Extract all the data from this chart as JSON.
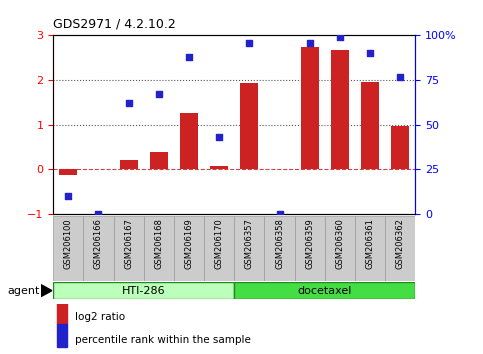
{
  "title": "GDS2971 / 4.2.10.2",
  "samples": [
    "GSM206100",
    "GSM206166",
    "GSM206167",
    "GSM206168",
    "GSM206169",
    "GSM206170",
    "GSM206357",
    "GSM206358",
    "GSM206359",
    "GSM206360",
    "GSM206361",
    "GSM206362"
  ],
  "log2_ratio": [
    -0.13,
    0.0,
    0.22,
    0.38,
    1.27,
    0.07,
    1.93,
    0.0,
    2.75,
    2.68,
    1.96,
    0.97
  ],
  "percentile": [
    10.0,
    0.0,
    62.0,
    67.0,
    88.0,
    43.0,
    96.0,
    0.0,
    96.0,
    99.0,
    90.0,
    77.0
  ],
  "bar_color": "#CC2222",
  "dot_color": "#2222CC",
  "ylim_left": [
    -1,
    3
  ],
  "ylim_right": [
    0,
    100
  ],
  "yticks_left": [
    -1,
    0,
    1,
    2,
    3
  ],
  "yticks_right": [
    0,
    25,
    50,
    75,
    100
  ],
  "yticklabels_right": [
    "0",
    "25",
    "50",
    "75",
    "100%"
  ],
  "hti286_color": "#bbffbb",
  "docetaxel_color": "#44dd44",
  "hti286_samples": 6,
  "docetaxel_samples": 6,
  "legend_bar_label": "log2 ratio",
  "legend_dot_label": "percentile rank within the sample",
  "agent_label": "agent",
  "hti286_label": "HTI-286",
  "docetaxel_label": "docetaxel",
  "zero_line_color": "#CC4444",
  "dotted_line_color": "#555555",
  "background_color": "#ffffff",
  "plot_bg_color": "#ffffff",
  "bar_width": 0.6,
  "dot_size": 18,
  "label_bg_color": "#cccccc",
  "label_edge_color": "#999999"
}
